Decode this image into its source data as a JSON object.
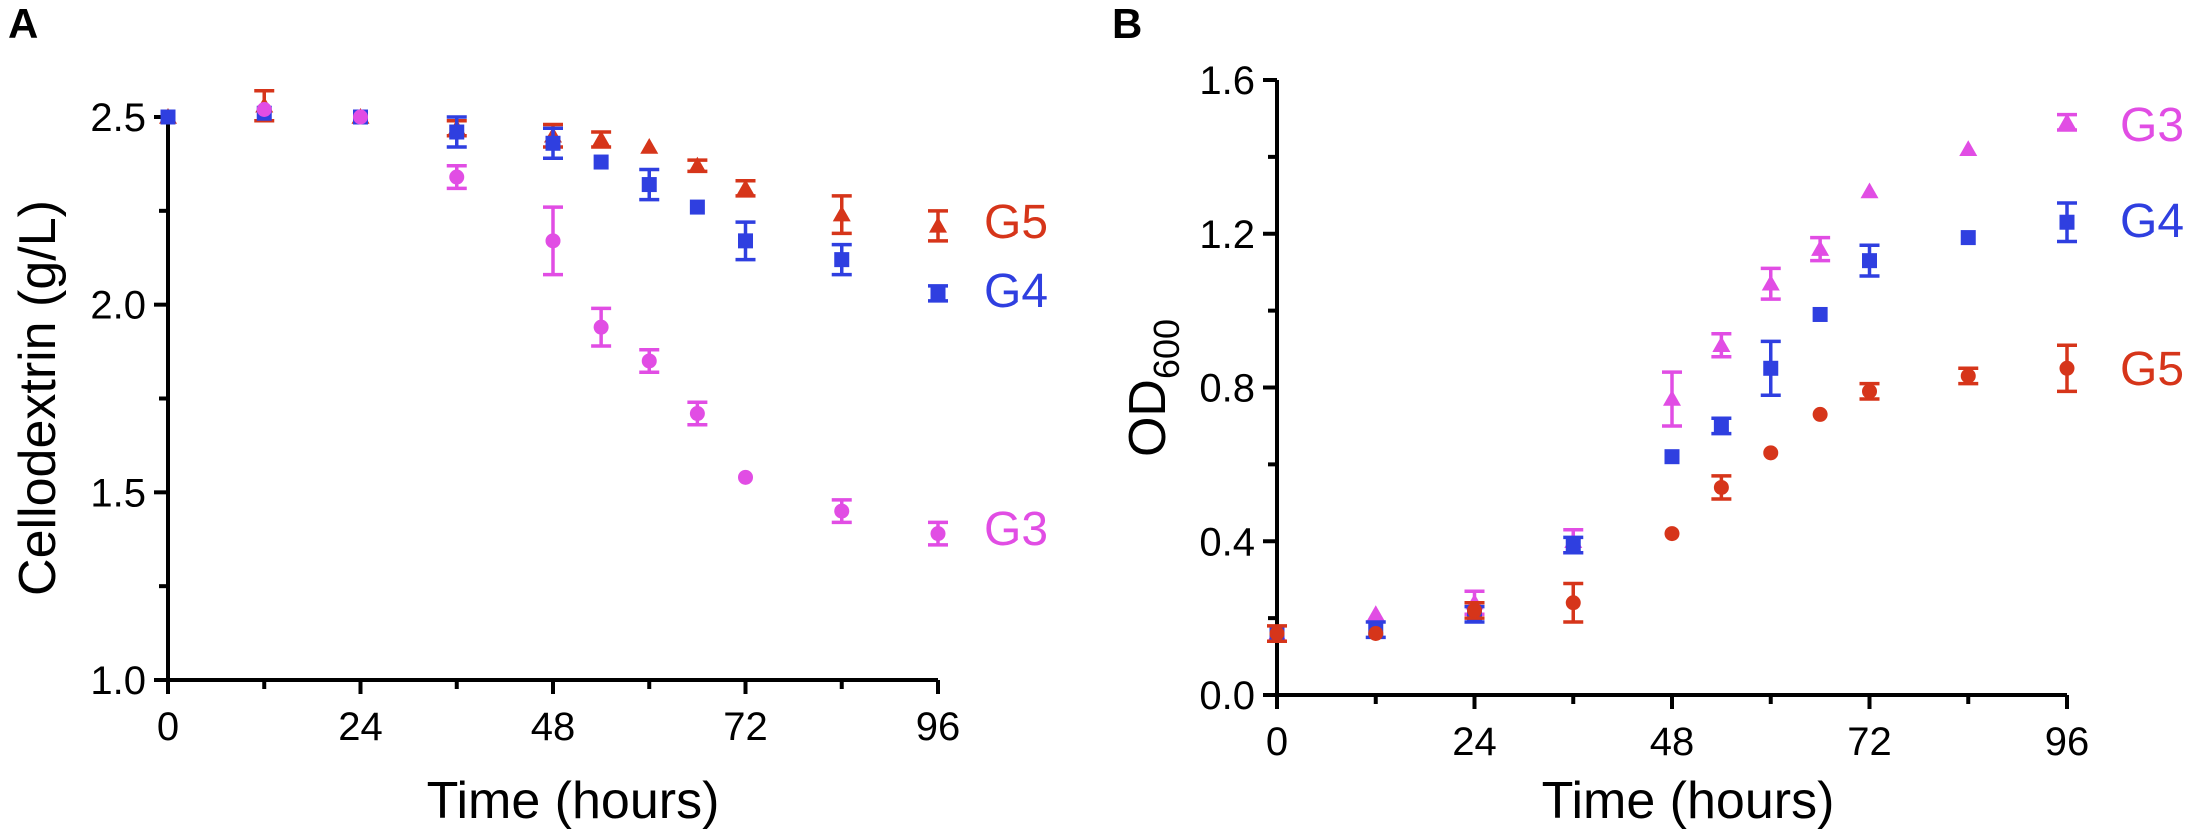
{
  "colors": {
    "G3": "#e14de4",
    "G4": "#2f3fe0",
    "G5": "#d6351a",
    "axis": "#000000"
  },
  "chart_data": [
    {
      "type": "scatter",
      "panel_label": "A",
      "xlabel": "Time (hours)",
      "ylabel": "Cellodextrin (g/L)",
      "xlim": [
        0,
        96
      ],
      "ylim": [
        1.0,
        2.5
      ],
      "xticks": [
        "0",
        "24",
        "48",
        "72",
        "96"
      ],
      "yticks": [
        "1.0",
        "1.5",
        "2.0",
        "2.5"
      ],
      "grid": false,
      "legend": "right, inline labels",
      "series": [
        {
          "name": "G5",
          "color": "#d6351a",
          "marker": "triangle",
          "x": [
            0,
            12,
            24,
            36,
            48,
            54,
            60,
            66,
            72,
            84,
            96
          ],
          "y": [
            2.5,
            2.53,
            2.5,
            2.47,
            2.45,
            2.44,
            2.42,
            2.37,
            2.31,
            2.24,
            2.21
          ],
          "err": [
            0,
            0.04,
            0,
            0.02,
            0.03,
            0.02,
            0,
            0.015,
            0.02,
            0.05,
            0.04
          ]
        },
        {
          "name": "G4",
          "color": "#2f3fe0",
          "marker": "square",
          "x": [
            0,
            12,
            24,
            36,
            48,
            54,
            60,
            66,
            72,
            84,
            96
          ],
          "y": [
            2.5,
            2.51,
            2.5,
            2.46,
            2.43,
            2.38,
            2.32,
            2.26,
            2.17,
            2.12,
            2.03
          ],
          "err": [
            0,
            0,
            0,
            0.04,
            0.04,
            0,
            0.04,
            0,
            0.05,
            0.04,
            0.02
          ]
        },
        {
          "name": "G3",
          "color": "#e14de4",
          "marker": "circle",
          "x": [
            12,
            24,
            36,
            48,
            54,
            60,
            66,
            72,
            84,
            96
          ],
          "y": [
            2.52,
            2.5,
            2.34,
            2.17,
            1.94,
            1.85,
            1.71,
            1.54,
            1.45,
            1.39
          ],
          "err": [
            0,
            0,
            0.03,
            0.09,
            0.05,
            0.03,
            0.03,
            0,
            0.03,
            0.03
          ]
        }
      ]
    },
    {
      "type": "scatter",
      "panel_label": "B",
      "xlabel": "Time (hours)",
      "ylabel_main": "OD",
      "ylabel_sub": "600",
      "xlim": [
        0,
        96
      ],
      "ylim": [
        0.0,
        1.6
      ],
      "xticks": [
        "0",
        "24",
        "48",
        "72",
        "96"
      ],
      "yticks": [
        "0.0",
        "0.4",
        "0.8",
        "1.2",
        "1.6"
      ],
      "grid": false,
      "legend": "right, inline labels",
      "series": [
        {
          "name": "G3",
          "color": "#e14de4",
          "marker": "triangle",
          "x": [
            0,
            12,
            24,
            36,
            48,
            54,
            60,
            66,
            72,
            84,
            96
          ],
          "y": [
            0.16,
            0.21,
            0.24,
            0.4,
            0.77,
            0.91,
            1.07,
            1.16,
            1.31,
            1.42,
            1.49
          ],
          "err": [
            0,
            0,
            0.03,
            0.03,
            0.07,
            0.03,
            0.04,
            0.03,
            0,
            0,
            0.02
          ]
        },
        {
          "name": "G4",
          "color": "#2f3fe0",
          "marker": "square",
          "x": [
            0,
            12,
            24,
            36,
            48,
            54,
            60,
            66,
            72,
            84,
            96
          ],
          "y": [
            0.16,
            0.17,
            0.21,
            0.39,
            0.62,
            0.7,
            0.85,
            0.99,
            1.13,
            1.19,
            1.23
          ],
          "err": [
            0,
            0.02,
            0.02,
            0.02,
            0,
            0.02,
            0.07,
            0,
            0.04,
            0,
            0.05
          ]
        },
        {
          "name": "G5",
          "color": "#d6351a",
          "marker": "circle",
          "x": [
            0,
            12,
            24,
            36,
            48,
            54,
            60,
            66,
            72,
            84,
            96
          ],
          "y": [
            0.16,
            0.16,
            0.22,
            0.24,
            0.42,
            0.54,
            0.63,
            0.73,
            0.79,
            0.83,
            0.85
          ],
          "err": [
            0.02,
            0,
            0.02,
            0.05,
            0,
            0.03,
            0,
            0,
            0.02,
            0.02,
            0.06
          ]
        }
      ]
    }
  ]
}
